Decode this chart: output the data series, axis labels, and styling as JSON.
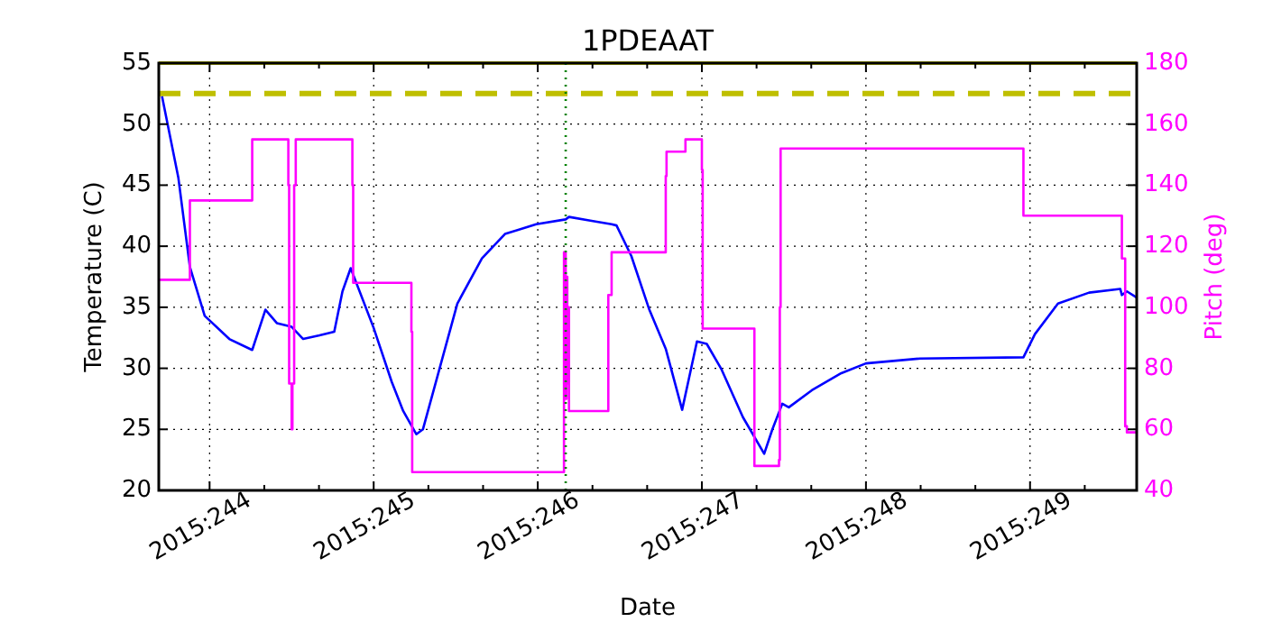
{
  "chart_data": {
    "type": "line",
    "title": "1PDEAAT",
    "xlabel": "Date",
    "ylabel": "Temperature (C)",
    "y2label": "Pitch (deg)",
    "xlim": [
      "2015-08-31T16:34",
      "2015-09-06T15:36"
    ],
    "xticks": [
      {
        "value": "2015-09-01",
        "label": "2015:244"
      },
      {
        "value": "2015-09-01T08:00",
        "label": null
      },
      {
        "value": "2015-09-01T16:00",
        "label": null
      },
      {
        "value": "2015-09-02",
        "label": "2015:245"
      },
      {
        "value": "2015-09-02T08:00",
        "label": null
      },
      {
        "value": "2015-09-02T16:00",
        "label": null
      },
      {
        "value": "2015-09-03",
        "label": "2015:246"
      },
      {
        "value": "2015-09-03T08:00",
        "label": null
      },
      {
        "value": "2015-09-03T16:00",
        "label": null
      },
      {
        "value": "2015-09-04",
        "label": "2015:247"
      },
      {
        "value": "2015-09-04T08:00",
        "label": null
      },
      {
        "value": "2015-09-04T16:00",
        "label": null
      },
      {
        "value": "2015-09-05",
        "label": "2015:248"
      },
      {
        "value": "2015-09-05T08:00",
        "label": null
      },
      {
        "value": "2015-09-05T16:00",
        "label": null
      },
      {
        "value": "2015-09-06",
        "label": "2015:249"
      },
      {
        "value": "2015-09-06T08:00",
        "label": null
      }
    ],
    "ylim": [
      20,
      55
    ],
    "yticks": [
      20,
      25,
      30,
      35,
      40,
      45,
      50,
      55
    ],
    "y2lim": [
      40,
      180
    ],
    "y2ticks": [
      40,
      60,
      80,
      100,
      120,
      140,
      160,
      180
    ],
    "grid": true,
    "line_style": "solid",
    "marker": "none",
    "series": [
      {
        "color": "#0000ff",
        "axis": "y",
        "x": [
          "2015-08-31T17:02",
          "2015-08-31T19:26",
          "2015-08-31T21:07",
          "2015-08-31T23:17",
          "2015-09-01T02:53",
          "2015-09-01T06:14",
          "2015-09-01T08:10",
          "2015-09-01T09:50",
          "2015-09-01T12:00",
          "2015-09-01T13:41",
          "2015-09-01T16:05",
          "2015-09-01T18:14",
          "2015-09-01T19:26",
          "2015-09-01T20:38",
          "2015-09-02T00:00",
          "2015-09-02T02:38",
          "2015-09-02T04:19",
          "2015-09-02T06:14",
          "2015-09-02T07:12",
          "2015-09-02T09:36",
          "2015-09-02T12:14",
          "2015-09-02T15:50",
          "2015-09-02T19:12",
          "2015-09-02T23:46",
          "2015-09-03T04:05",
          "2015-09-03T04:34",
          "2015-09-03T07:41",
          "2015-09-03T10:48",
          "2015-09-03T11:31",
          "2015-09-03T13:41",
          "2015-09-03T16:19",
          "2015-09-03T18:43",
          "2015-09-03T21:07",
          "2015-09-03T23:17",
          "2015-09-04T00:43",
          "2015-09-04T02:53",
          "2015-09-04T06:00",
          "2015-09-04T09:07",
          "2015-09-04T10:19",
          "2015-09-04T11:46",
          "2015-09-04T12:43",
          "2015-09-04T16:05",
          "2015-09-04T20:24",
          "2015-09-05T00:00",
          "2015-09-05T07:55",
          "2015-09-05T23:02",
          "2015-09-06T00:43",
          "2015-09-06T04:05",
          "2015-09-06T08:38",
          "2015-09-06T13:12",
          "2015-09-06T13:26",
          "2015-09-06T14:10",
          "2015-09-06T15:36"
        ],
        "values": [
          52.3,
          45.6,
          38.3,
          34.3,
          32.4,
          31.5,
          34.8,
          33.7,
          33.4,
          32.4,
          32.7,
          33.0,
          36.3,
          38.2,
          33.3,
          28.9,
          26.5,
          24.6,
          25.0,
          29.9,
          35.3,
          39.0,
          41.0,
          41.8,
          42.2,
          42.4,
          42.1,
          41.8,
          41.7,
          39.2,
          34.8,
          31.6,
          26.6,
          32.2,
          32.0,
          29.9,
          26.0,
          23.0,
          25.0,
          27.1,
          26.8,
          28.2,
          29.6,
          30.4,
          30.8,
          30.9,
          32.8,
          35.3,
          36.2,
          36.5,
          36.0,
          36.3,
          35.8
        ]
      },
      {
        "type": "step",
        "color": "#ff00ff",
        "axis": "y2",
        "x": [
          "2015-08-31T16:34",
          "2015-08-31T21:07",
          "2015-09-01T06:14",
          "2015-09-01T11:31",
          "2015-09-01T11:38",
          "2015-09-01T12:00",
          "2015-09-01T12:07",
          "2015-09-01T12:22",
          "2015-09-01T12:36",
          "2015-09-01T20:53",
          "2015-09-01T21:00",
          "2015-09-02T05:31",
          "2015-09-02T05:38",
          "2015-09-03T03:50",
          "2015-09-03T04:05",
          "2015-09-03T04:12",
          "2015-09-03T04:19",
          "2015-09-03T04:26",
          "2015-09-03T04:34",
          "2015-09-03T10:19",
          "2015-09-03T10:48",
          "2015-09-03T18:43",
          "2015-09-03T18:50",
          "2015-09-03T21:36",
          "2015-09-04T00:00",
          "2015-09-04T00:07",
          "2015-09-04T07:41",
          "2015-09-04T11:17",
          "2015-09-04T11:24",
          "2015-09-04T11:31",
          "2015-09-05T23:02",
          "2015-09-06T13:26",
          "2015-09-06T13:55",
          "2015-09-06T14:10",
          "2015-09-06T15:36"
        ],
        "values": [
          109,
          135,
          155,
          140,
          75,
          60,
          75,
          140,
          155,
          140,
          108,
          92,
          46,
          118,
          70,
          110,
          75,
          100,
          66,
          104,
          118,
          143,
          151,
          155,
          145,
          93,
          48,
          50,
          100,
          152,
          130,
          116,
          61,
          59,
          59
        ]
      }
    ],
    "ref_lines": [
      {
        "axis": "y",
        "value": 52.5,
        "color": "#bfbf00",
        "line_style": "dashed"
      },
      {
        "axis": "y",
        "value": 55,
        "color": "#bfbf00",
        "line_style": "solid"
      },
      {
        "axis": "x",
        "value": "2015-09-03T04:05",
        "color": "#008000",
        "line_style": "dotted"
      }
    ]
  }
}
